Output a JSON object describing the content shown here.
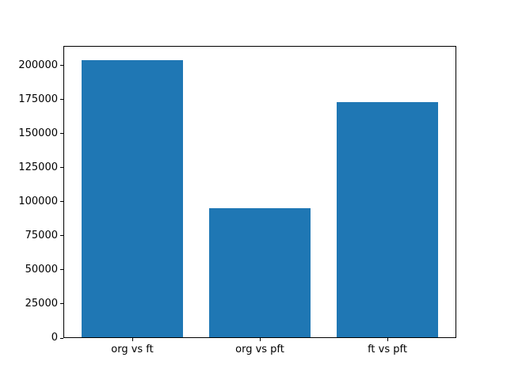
{
  "chart_data": {
    "type": "bar",
    "categories": [
      "org vs ft",
      "org vs pft",
      "ft vs pft"
    ],
    "values": [
      204000,
      95000,
      173000
    ],
    "title": "",
    "xlabel": "",
    "ylabel": "",
    "ylim": [
      0,
      214200
    ],
    "yticks": [
      0,
      25000,
      50000,
      75000,
      100000,
      125000,
      150000,
      175000,
      200000
    ],
    "bar_color": "#1f77b4",
    "axis_color": "#000000",
    "background_color": "#ffffff",
    "grid": false,
    "legend": null
  }
}
